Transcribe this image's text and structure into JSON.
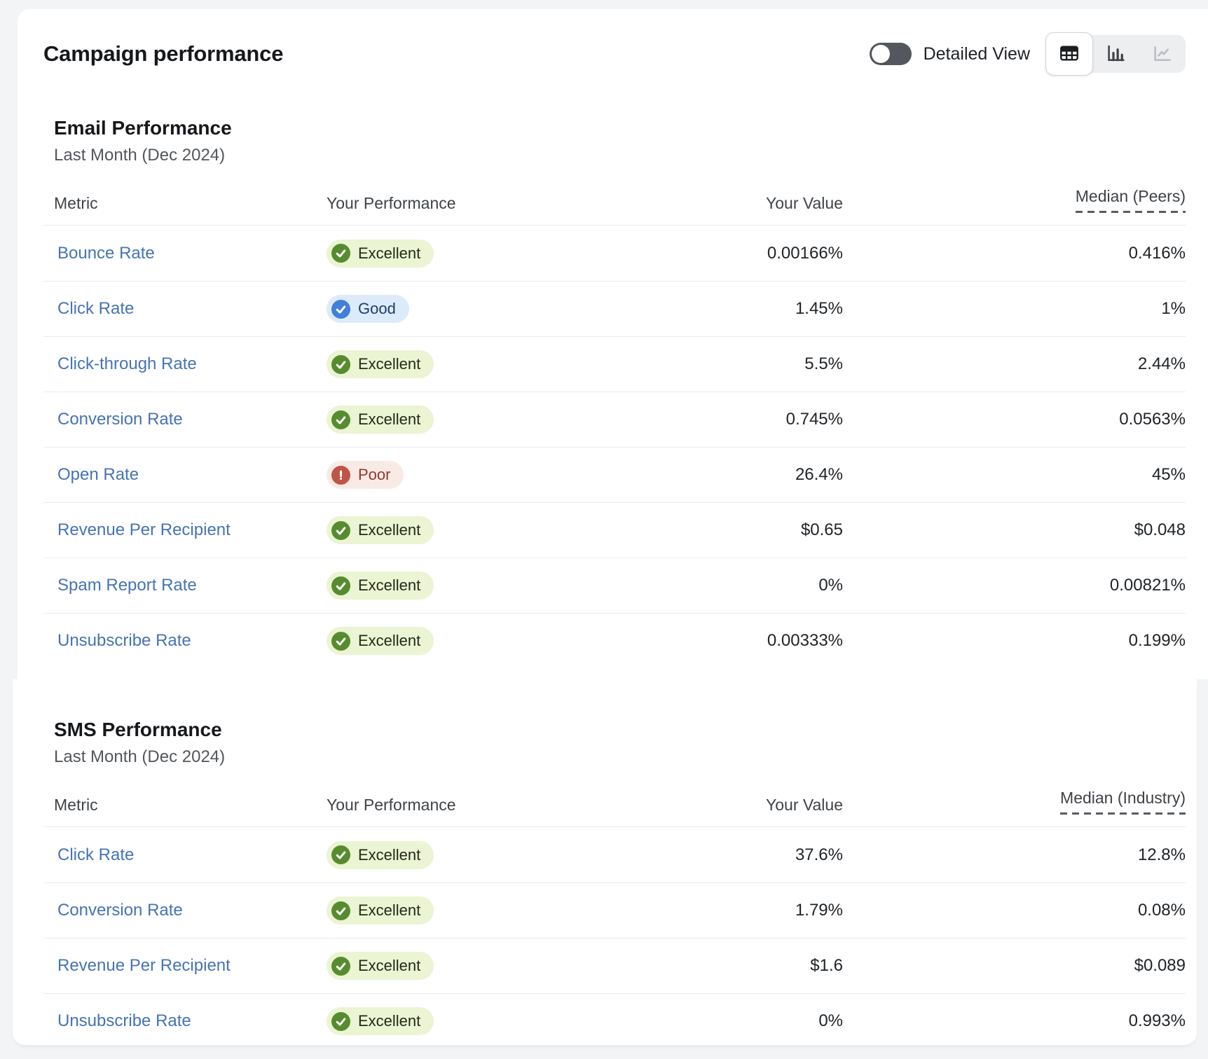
{
  "header": {
    "title": "Campaign performance",
    "detailed_view": {
      "label": "Detailed View",
      "enabled": false
    },
    "view_switcher": {
      "options": [
        {
          "name": "table-view",
          "icon": "table-icon",
          "selected": true
        },
        {
          "name": "bar-chart-view",
          "icon": "bar-chart-icon",
          "selected": false
        },
        {
          "name": "line-chart-view",
          "icon": "line-chart-icon",
          "selected": false,
          "disabled": true
        }
      ]
    }
  },
  "sections": [
    {
      "title": "Email Performance",
      "subtitle": "Last Month (Dec 2024)",
      "columns": [
        "Metric",
        "Your Performance",
        "Your Value",
        "Median (Peers)"
      ],
      "rows": [
        {
          "metric": "Bounce Rate",
          "performance": "Excellent",
          "value": "0.00166%",
          "median": "0.416%"
        },
        {
          "metric": "Click Rate",
          "performance": "Good",
          "value": "1.45%",
          "median": "1%"
        },
        {
          "metric": "Click-through Rate",
          "performance": "Excellent",
          "value": "5.5%",
          "median": "2.44%"
        },
        {
          "metric": "Conversion Rate",
          "performance": "Excellent",
          "value": "0.745%",
          "median": "0.0563%"
        },
        {
          "metric": "Open Rate",
          "performance": "Poor",
          "value": "26.4%",
          "median": "45%"
        },
        {
          "metric": "Revenue Per Recipient",
          "performance": "Excellent",
          "value": "$0.65",
          "median": "$0.048"
        },
        {
          "metric": "Spam Report Rate",
          "performance": "Excellent",
          "value": "0%",
          "median": "0.00821%"
        },
        {
          "metric": "Unsubscribe Rate",
          "performance": "Excellent",
          "value": "0.00333%",
          "median": "0.199%"
        }
      ]
    },
    {
      "title": "SMS Performance",
      "subtitle": "Last Month (Dec 2024)",
      "columns": [
        "Metric",
        "Your Performance",
        "Your Value",
        "Median (Industry)"
      ],
      "rows": [
        {
          "metric": "Click Rate",
          "performance": "Excellent",
          "value": "37.6%",
          "median": "12.8%"
        },
        {
          "metric": "Conversion Rate",
          "performance": "Excellent",
          "value": "1.79%",
          "median": "0.08%"
        },
        {
          "metric": "Revenue Per Recipient",
          "performance": "Excellent",
          "value": "$1.6",
          "median": "$0.089"
        },
        {
          "metric": "Unsubscribe Rate",
          "performance": "Excellent",
          "value": "0%",
          "median": "0.993%"
        }
      ]
    }
  ],
  "badges": {
    "Excellent": {
      "bg": "#ebf4d3",
      "dot": "#578c2e",
      "text": "#232a18",
      "icon": "check"
    },
    "Good": {
      "bg": "#dcebfa",
      "dot": "#4180d8",
      "text": "#1d3c6e",
      "icon": "check"
    },
    "Poor": {
      "bg": "#faeae6",
      "dot": "#c05446",
      "text": "#8c392c",
      "icon": "exclamation"
    }
  },
  "colors": {
    "page_background": "#f3f4f5",
    "card_background": "#ffffff",
    "link_blue": "#4673b4",
    "text_primary": "#202428",
    "text_secondary": "#53565b",
    "divider": "#ebebed",
    "toggle_off_track": "#54575d"
  }
}
